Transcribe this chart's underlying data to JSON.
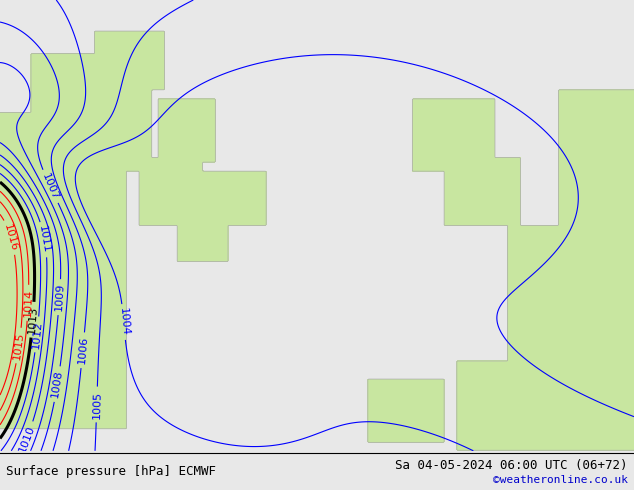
{
  "title_left": "Surface pressure [hPa] ECMWF",
  "title_right": "Sa 04-05-2024 06:00 UTC (06+72)",
  "credit": "©weatheronline.co.uk",
  "background_color": "#e8e8e8",
  "land_color": "#c8e6a0",
  "figsize": [
    6.34,
    4.9
  ],
  "dpi": 100,
  "contour_levels_blue": [
    1004,
    1005,
    1006,
    1007,
    1008,
    1009,
    1010,
    1011,
    1012
  ],
  "contour_levels_black": [
    1013
  ],
  "contour_levels_red": [
    1014,
    1015,
    1016
  ],
  "font_size_labels": 8,
  "font_size_title": 9,
  "font_size_credit": 8
}
